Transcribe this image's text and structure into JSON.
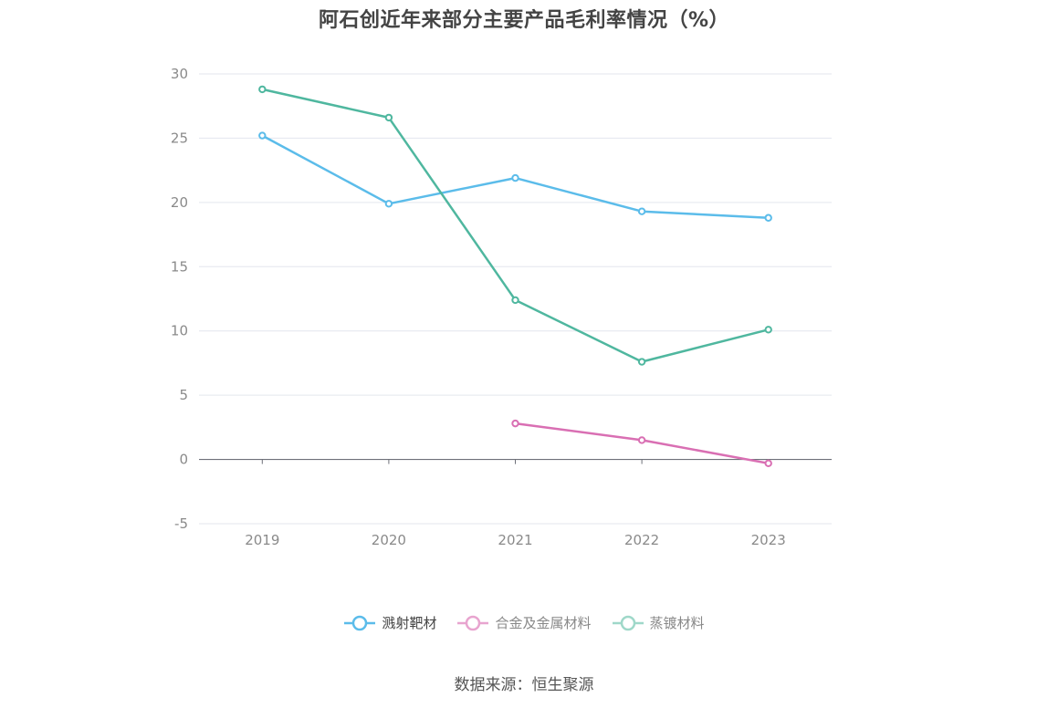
{
  "chart_data": {
    "type": "line",
    "title": "阿石创近年来部分主要产品毛利率情况（%）",
    "categories": [
      "2019",
      "2020",
      "2021",
      "2022",
      "2023"
    ],
    "ylim": [
      -5,
      30
    ],
    "yticks": [
      "-5",
      "0",
      "5",
      "10",
      "15",
      "20",
      "25",
      "30"
    ],
    "grid": true,
    "legend_position": "bottom",
    "series": [
      {
        "name": "溅射靶材",
        "color": "#5bbcea",
        "values": [
          25.2,
          19.9,
          21.9,
          19.3,
          18.8
        ]
      },
      {
        "name": "合金及金属材料",
        "color": "#d96fb3",
        "values": [
          null,
          null,
          2.8,
          1.5,
          -0.3
        ]
      },
      {
        "name": "蒸镀材料",
        "color": "#4fb79f",
        "values": [
          28.8,
          26.6,
          12.4,
          7.6,
          10.1
        ]
      }
    ]
  },
  "footer": {
    "source": "数据来源：恒生聚源"
  }
}
